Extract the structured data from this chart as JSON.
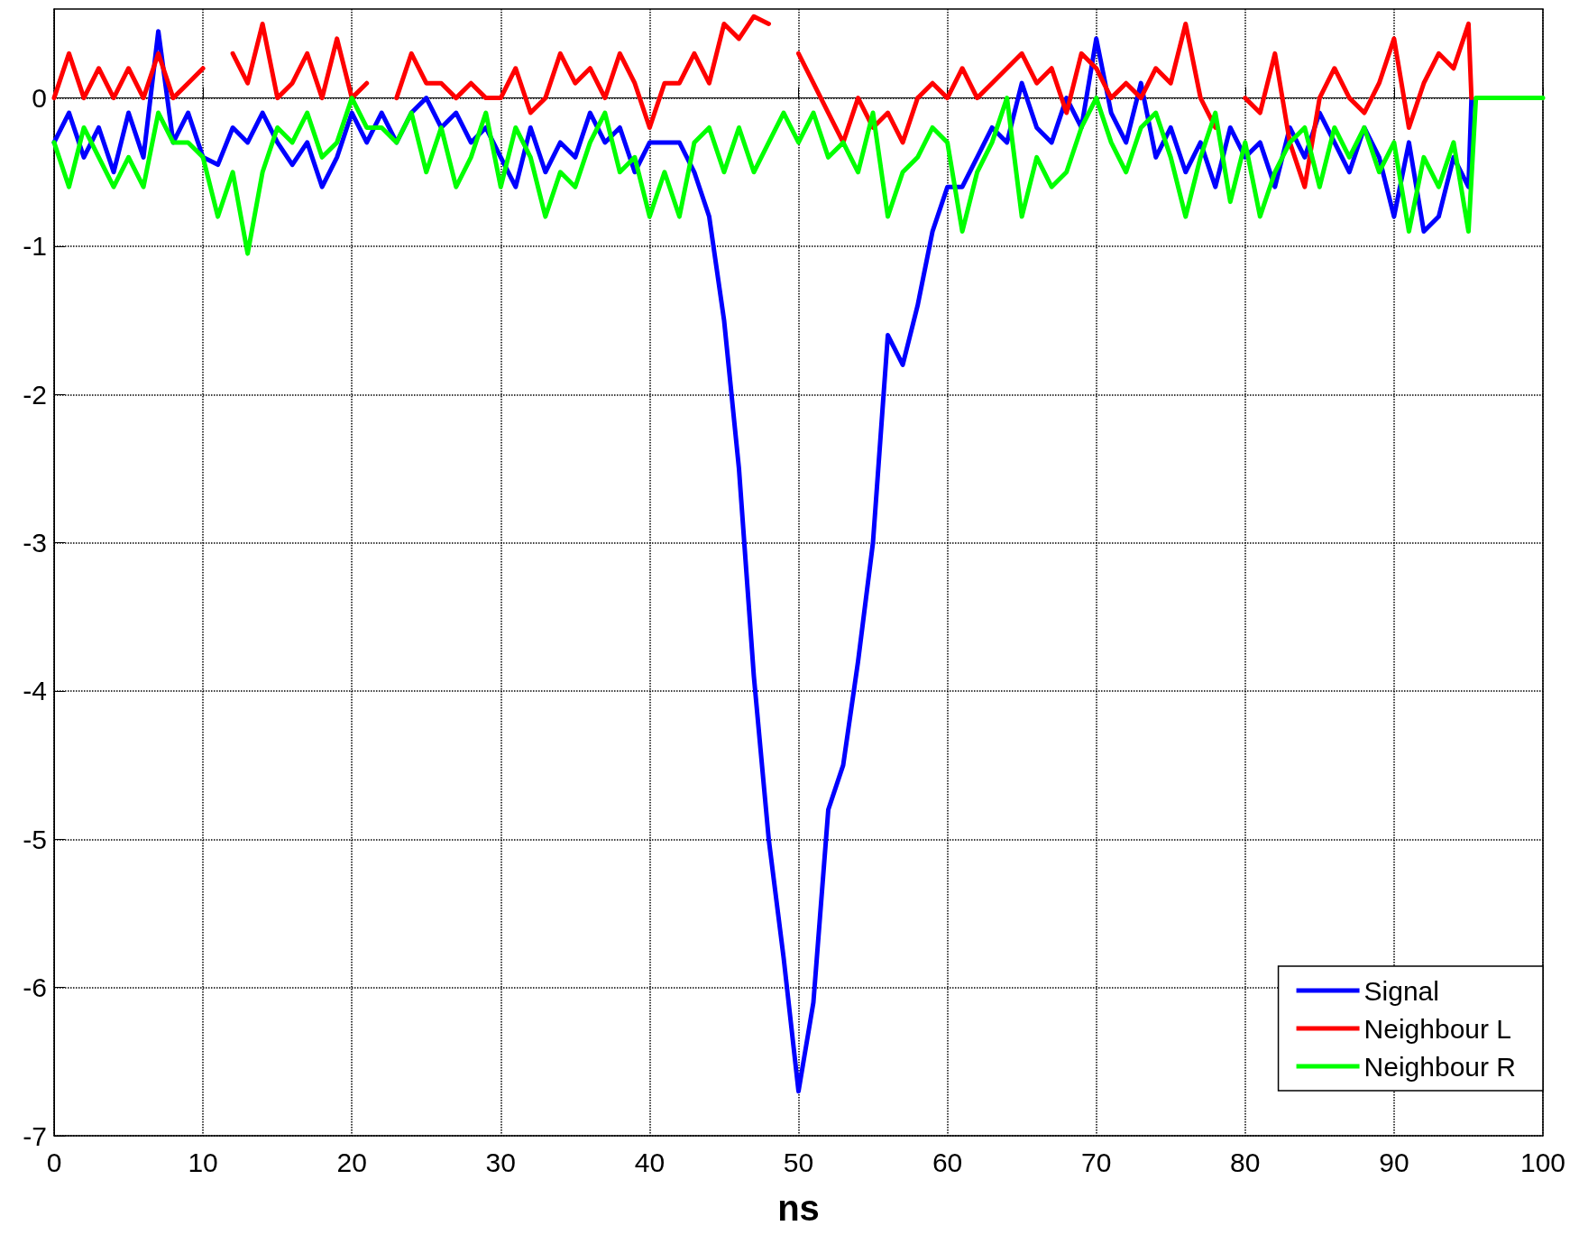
{
  "chart_data": {
    "type": "line",
    "xlabel": "ns",
    "xlim": [
      0,
      100
    ],
    "xticks": [
      0,
      10,
      20,
      30,
      40,
      50,
      60,
      70,
      80,
      90,
      100
    ],
    "ylim": [
      -7,
      0.6
    ],
    "yticks": [
      -7,
      -6,
      -5,
      -4,
      -3,
      -2,
      -1,
      0
    ],
    "grid": true,
    "legend": "bottom right",
    "marker": "none",
    "line_style": "solid",
    "series": [
      {
        "name": "Signal",
        "color": "#0000ff",
        "x": [
          0,
          1,
          2,
          3,
          4,
          5,
          6,
          7,
          8,
          9,
          10,
          11,
          12,
          13,
          14,
          15,
          16,
          17,
          18,
          19,
          20,
          21,
          22,
          23,
          24,
          25,
          26,
          27,
          28,
          29,
          30,
          31,
          32,
          33,
          34,
          35,
          36,
          37,
          38,
          39,
          40,
          41,
          42,
          43,
          44,
          45,
          46,
          47,
          48,
          49,
          50,
          51,
          52,
          53,
          54,
          55,
          56,
          57,
          58,
          59,
          60,
          61,
          62,
          63,
          64,
          65,
          66,
          67,
          68,
          69,
          70,
          71,
          72,
          73,
          74,
          75,
          76,
          77,
          78,
          79,
          80,
          81,
          82,
          83,
          84,
          85,
          86,
          87,
          88,
          89,
          90,
          91,
          92,
          93,
          94,
          95,
          95.2
        ],
        "values": [
          -0.3,
          -0.1,
          -0.4,
          -0.2,
          -0.5,
          -0.1,
          -0.4,
          0.45,
          -0.3,
          -0.1,
          -0.4,
          -0.45,
          -0.2,
          -0.3,
          -0.1,
          -0.3,
          -0.45,
          -0.3,
          -0.6,
          -0.4,
          -0.1,
          -0.3,
          -0.1,
          -0.3,
          -0.1,
          0,
          -0.2,
          -0.1,
          -0.3,
          -0.2,
          -0.4,
          -0.6,
          -0.2,
          -0.5,
          -0.3,
          -0.4,
          -0.1,
          -0.3,
          -0.2,
          -0.5,
          -0.3,
          -0.3,
          -0.3,
          -0.5,
          -0.8,
          -1.5,
          -2.5,
          -3.9,
          -5.0,
          -5.8,
          -6.7,
          -6.1,
          -4.8,
          -4.5,
          -3.8,
          -3.0,
          -1.6,
          -1.8,
          -1.4,
          -0.9,
          -0.6,
          -0.6,
          -0.4,
          -0.2,
          -0.3,
          0.1,
          -0.2,
          -0.3,
          0,
          -0.2,
          0.4,
          -0.1,
          -0.3,
          0.1,
          -0.4,
          -0.2,
          -0.5,
          -0.3,
          -0.6,
          -0.2,
          -0.4,
          -0.3,
          -0.6,
          -0.2,
          -0.4,
          -0.1,
          -0.3,
          -0.5,
          -0.2,
          -0.4,
          -0.8,
          -0.3,
          -0.9,
          -0.8,
          -0.4,
          -0.6,
          0
        ]
      },
      {
        "name": "Neighbour L",
        "color": "#ff0000",
        "x": [
          0,
          1,
          2,
          3,
          4,
          5,
          6,
          7,
          8,
          9,
          10,
          11,
          12,
          13,
          14,
          15,
          16,
          17,
          18,
          19,
          20,
          21,
          22,
          23,
          24,
          25,
          26,
          27,
          28,
          29,
          30,
          31,
          32,
          33,
          34,
          35,
          36,
          37,
          38,
          39,
          40,
          41,
          42,
          43,
          44,
          45,
          46,
          47,
          48,
          49,
          50,
          51,
          52,
          53,
          54,
          55,
          56,
          57,
          58,
          59,
          60,
          61,
          62,
          63,
          64,
          65,
          66,
          67,
          68,
          69,
          70,
          71,
          72,
          73,
          74,
          75,
          76,
          77,
          78,
          79,
          80,
          81,
          82,
          83,
          84,
          85,
          86,
          87,
          88,
          89,
          90,
          91,
          92,
          93,
          94,
          95,
          95.2
        ],
        "values": [
          0,
          0.3,
          0,
          0.2,
          0,
          0.2,
          0,
          0.3,
          0,
          0.1,
          0.2,
          null,
          0.3,
          0.1,
          0.5,
          0,
          0.1,
          0.3,
          0,
          0.4,
          0,
          0.1,
          null,
          0,
          0.3,
          0.1,
          0.1,
          0,
          0.1,
          0,
          0,
          0.2,
          -0.1,
          0,
          0.3,
          0.1,
          0.2,
          0,
          0.3,
          0.1,
          -0.2,
          0.1,
          0.1,
          0.3,
          0.1,
          0.5,
          0.4,
          0.55,
          0.5,
          null,
          0.3,
          0.1,
          -0.1,
          -0.3,
          0,
          -0.2,
          -0.1,
          -0.3,
          0,
          0.1,
          0,
          0.2,
          0,
          0.1,
          0.2,
          0.3,
          0.1,
          0.2,
          -0.1,
          0.3,
          0.2,
          0,
          0.1,
          0,
          0.2,
          0.1,
          0.5,
          0,
          -0.2,
          null,
          0,
          -0.1,
          0.3,
          -0.3,
          -0.6,
          0,
          0.2,
          0,
          -0.1,
          0.1,
          0.4,
          -0.2,
          0.1,
          0.3,
          0.2,
          0.5,
          0
        ]
      },
      {
        "name": "Neighbour R",
        "color": "#00ff00",
        "x": [
          0,
          1,
          2,
          3,
          4,
          5,
          6,
          7,
          8,
          9,
          10,
          11,
          12,
          13,
          14,
          15,
          16,
          17,
          18,
          19,
          20,
          21,
          22,
          23,
          24,
          25,
          26,
          27,
          28,
          29,
          30,
          31,
          32,
          33,
          34,
          35,
          36,
          37,
          38,
          39,
          40,
          41,
          42,
          43,
          44,
          45,
          46,
          47,
          48,
          49,
          50,
          51,
          52,
          53,
          54,
          55,
          56,
          57,
          58,
          59,
          60,
          61,
          62,
          63,
          64,
          65,
          66,
          67,
          68,
          69,
          70,
          71,
          72,
          73,
          74,
          75,
          76,
          77,
          78,
          79,
          80,
          81,
          82,
          83,
          84,
          85,
          86,
          87,
          88,
          89,
          90,
          91,
          92,
          93,
          94,
          95,
          95.5,
          100
        ],
        "values": [
          -0.3,
          -0.6,
          -0.2,
          -0.4,
          -0.6,
          -0.4,
          -0.6,
          -0.1,
          -0.3,
          -0.3,
          -0.4,
          -0.8,
          -0.5,
          -1.05,
          -0.5,
          -0.2,
          -0.3,
          -0.1,
          -0.4,
          -0.3,
          0,
          -0.2,
          -0.2,
          -0.3,
          -0.1,
          -0.5,
          -0.2,
          -0.6,
          -0.4,
          -0.1,
          -0.6,
          -0.2,
          -0.4,
          -0.8,
          -0.5,
          -0.6,
          -0.3,
          -0.1,
          -0.5,
          -0.4,
          -0.8,
          -0.5,
          -0.8,
          -0.3,
          -0.2,
          -0.5,
          -0.2,
          -0.5,
          -0.3,
          -0.1,
          -0.3,
          -0.1,
          -0.4,
          -0.3,
          -0.5,
          -0.1,
          -0.8,
          -0.5,
          -0.4,
          -0.2,
          -0.3,
          -0.9,
          -0.5,
          -0.3,
          0,
          -0.8,
          -0.4,
          -0.6,
          -0.5,
          -0.2,
          0,
          -0.3,
          -0.5,
          -0.2,
          -0.1,
          -0.4,
          -0.8,
          -0.4,
          -0.1,
          -0.7,
          -0.3,
          -0.8,
          -0.5,
          -0.3,
          -0.2,
          -0.6,
          -0.2,
          -0.4,
          -0.2,
          -0.5,
          -0.3,
          -0.9,
          -0.4,
          -0.6,
          -0.3,
          -0.9,
          0,
          0
        ]
      }
    ]
  }
}
